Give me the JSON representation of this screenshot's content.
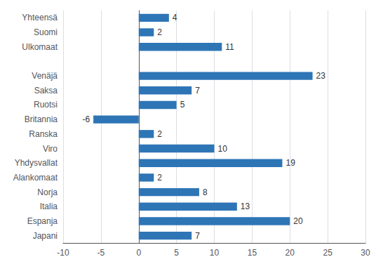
{
  "chart_data": {
    "type": "bar",
    "orientation": "horizontal",
    "categories": [
      "Yhteensä",
      "Suomi",
      "Ulkomaat",
      null,
      "Venäjä",
      "Saksa",
      "Ruotsi",
      "Britannia",
      "Ranska",
      "Viro",
      "Yhdysvallat",
      "Alankomaat",
      "Norja",
      "Italia",
      "Espanja",
      "Japani"
    ],
    "values": [
      4,
      2,
      11,
      null,
      23,
      7,
      5,
      -6,
      2,
      10,
      19,
      2,
      8,
      13,
      20,
      7
    ],
    "color": "#2E75B6",
    "xlim": [
      -10,
      30
    ],
    "xticks": [
      -10,
      -5,
      0,
      5,
      10,
      15,
      20,
      25,
      30
    ],
    "grid": true,
    "data_labels": true
  }
}
